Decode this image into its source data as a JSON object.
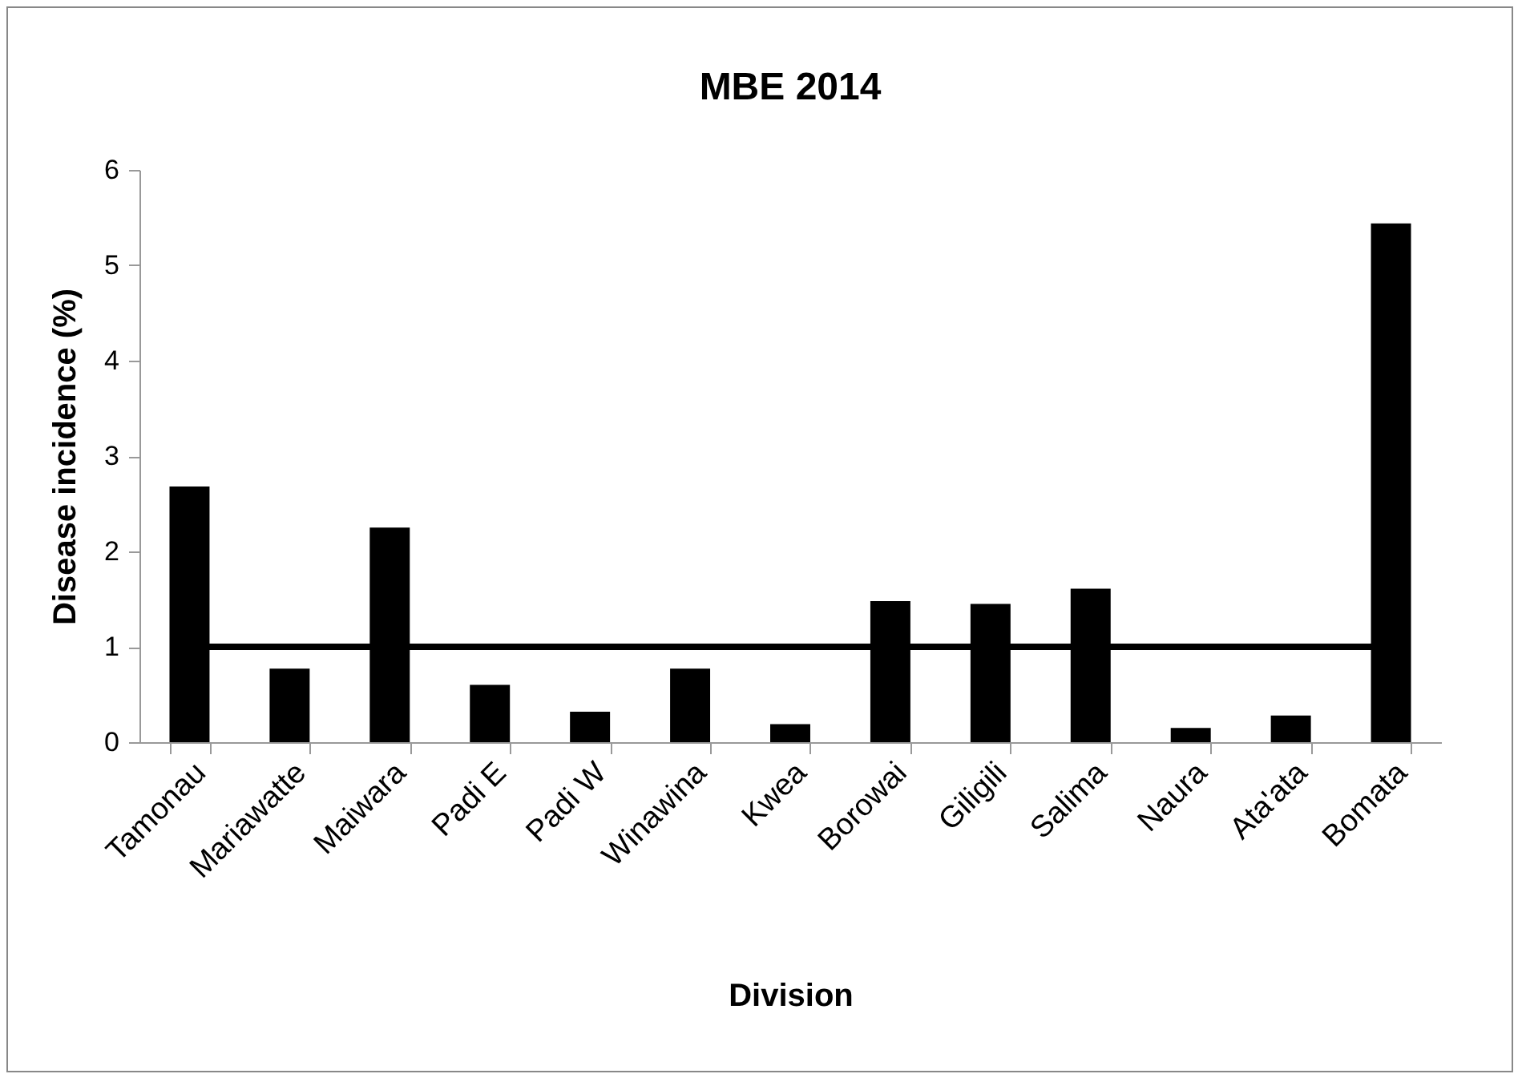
{
  "chart_data": {
    "type": "bar",
    "title": "MBE 2014",
    "xlabel": "Division",
    "ylabel": "Disease incidence (%)",
    "categories": [
      "Tamonau",
      "Mariawatte",
      "Maiwara",
      "Padi E",
      "Padi W",
      "Winawina",
      "Kwea",
      "Borowai",
      "Giligili",
      "Salima",
      "Naura",
      "Ata'ata",
      "Bomata"
    ],
    "values": [
      2.68,
      0.77,
      2.25,
      0.6,
      0.32,
      0.77,
      0.19,
      1.48,
      1.45,
      1.61,
      0.15,
      0.28,
      5.44
    ],
    "color": "#000000",
    "ylim": [
      0,
      6
    ],
    "yticks": [
      0,
      1,
      2,
      3,
      4,
      5,
      6
    ],
    "ref_lines": [
      {
        "axis": "y",
        "value": 1,
        "color": "#000000"
      }
    ]
  }
}
